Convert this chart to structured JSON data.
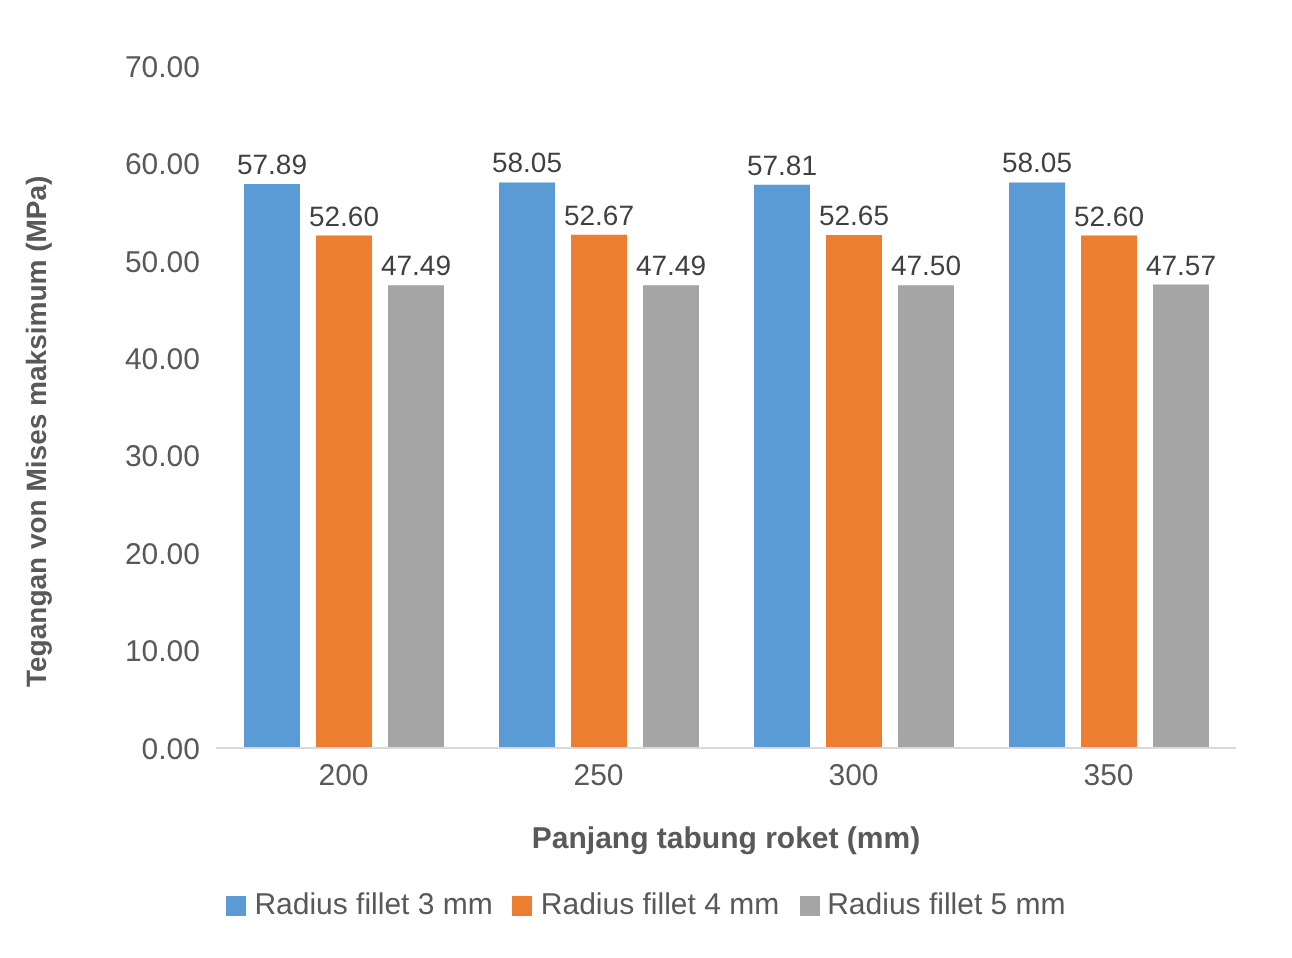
{
  "chart_data": {
    "type": "bar",
    "xlabel": "Panjang tabung roket (mm)",
    "ylabel": "Tegangan von Mises maksimum (MPa)",
    "categories": [
      "200",
      "250",
      "300",
      "350"
    ],
    "series": [
      {
        "name": "Radius fillet 3 mm",
        "color": "#5b9bd5",
        "values": [
          57.89,
          58.05,
          57.81,
          58.05
        ],
        "value_labels": [
          "57.89",
          "58.05",
          "57.81",
          "58.05"
        ]
      },
      {
        "name": "Radius fillet 4 mm",
        "color": "#ed7d31",
        "values": [
          52.6,
          52.67,
          52.65,
          52.6
        ],
        "value_labels": [
          "52.60",
          "52.67",
          "52.65",
          "52.60"
        ]
      },
      {
        "name": "Radius fillet 5 mm",
        "color": "#a5a5a5",
        "values": [
          47.49,
          47.49,
          47.5,
          47.57
        ],
        "value_labels": [
          "47.49",
          "47.49",
          "47.50",
          "47.57"
        ]
      }
    ],
    "ylim": [
      0,
      70
    ],
    "yticks": [
      {
        "value": 0,
        "label": "0.00"
      },
      {
        "value": 10,
        "label": "10.00"
      },
      {
        "value": 20,
        "label": "20.00"
      },
      {
        "value": 30,
        "label": "30.00"
      },
      {
        "value": 40,
        "label": "40.00"
      },
      {
        "value": 50,
        "label": "50.00"
      },
      {
        "value": 60,
        "label": "60.00"
      },
      {
        "value": 70,
        "label": "70.00"
      }
    ],
    "grid": false,
    "legend": "bottom"
  }
}
